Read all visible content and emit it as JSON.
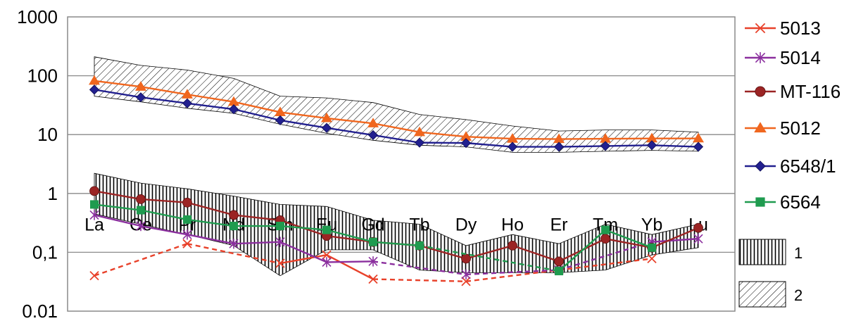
{
  "chart_data": {
    "type": "line",
    "yscale": "log",
    "ylim": [
      0.01,
      1000
    ],
    "ytick_labels": [
      "1000",
      "100",
      "10",
      "1",
      "0,1",
      "0.01"
    ],
    "categories": [
      "La",
      "Ce",
      "Pr",
      "Nd",
      "Sm",
      "Eu",
      "Gd",
      "Tb",
      "Dy",
      "Ho",
      "Er",
      "Tm",
      "Yb",
      "Lu"
    ],
    "legend_position": "right",
    "grid": "horizontal",
    "series": [
      {
        "name": "5013",
        "color": "#e8412a",
        "marker": "x",
        "line": "solid+dashed",
        "values": [
          0.04,
          null,
          0.14,
          null,
          0.065,
          0.09,
          0.035,
          null,
          0.032,
          null,
          0.05,
          null,
          0.078,
          null
        ]
      },
      {
        "name": "5014",
        "color": "#8b2f9e",
        "marker": "asterisk",
        "line": "solid+dashed",
        "values": [
          0.43,
          0.28,
          0.2,
          0.14,
          0.15,
          0.068,
          0.07,
          null,
          0.042,
          null,
          0.05,
          null,
          0.15,
          0.17
        ]
      },
      {
        "name": "MT-116",
        "color": "#9b2424",
        "marker": "circle",
        "line": "solid",
        "values": [
          1.1,
          0.8,
          0.7,
          0.43,
          0.35,
          0.19,
          0.15,
          0.13,
          0.078,
          0.13,
          0.07,
          0.17,
          0.12,
          0.26
        ]
      },
      {
        "name": "5012",
        "color": "#f0661e",
        "marker": "triangle",
        "line": "solid",
        "values": [
          82,
          65,
          48,
          36,
          24,
          19,
          15.5,
          11,
          9.2,
          8.5,
          8.4,
          8.5,
          8.6,
          8.6
        ]
      },
      {
        "name": "6548/1",
        "color": "#22208f",
        "marker": "diamond",
        "line": "solid",
        "values": [
          58,
          43,
          34,
          27,
          17.5,
          13,
          9.8,
          7.3,
          7.2,
          6.2,
          6.2,
          6.4,
          6.6,
          6.2
        ]
      },
      {
        "name": "6564",
        "color": "#1f9b4f",
        "marker": "square",
        "line": "solid+dashed",
        "values": [
          0.65,
          0.52,
          0.36,
          0.28,
          0.28,
          0.24,
          0.15,
          0.13,
          null,
          null,
          0.048,
          0.24,
          0.12,
          null
        ]
      }
    ],
    "bands": [
      {
        "name": "1",
        "pattern": "vertical-lines",
        "upper": [
          2.2,
          1.5,
          1.2,
          0.9,
          0.65,
          0.6,
          0.35,
          0.3,
          0.13,
          0.2,
          0.14,
          0.3,
          0.2,
          0.3
        ],
        "lower": [
          0.45,
          0.3,
          0.2,
          0.13,
          0.04,
          0.11,
          0.11,
          0.05,
          0.045,
          0.045,
          0.045,
          0.05,
          0.09,
          0.12
        ]
      },
      {
        "name": "2",
        "pattern": "diagonal-hatch",
        "upper": [
          210,
          150,
          125,
          90,
          45,
          42,
          35,
          22,
          18,
          14,
          11.5,
          12,
          12,
          11
        ],
        "lower": [
          45,
          36,
          28,
          23,
          15,
          10.5,
          8,
          6.6,
          6.2,
          5,
          5,
          5.2,
          5.4,
          5.2
        ]
      }
    ]
  }
}
